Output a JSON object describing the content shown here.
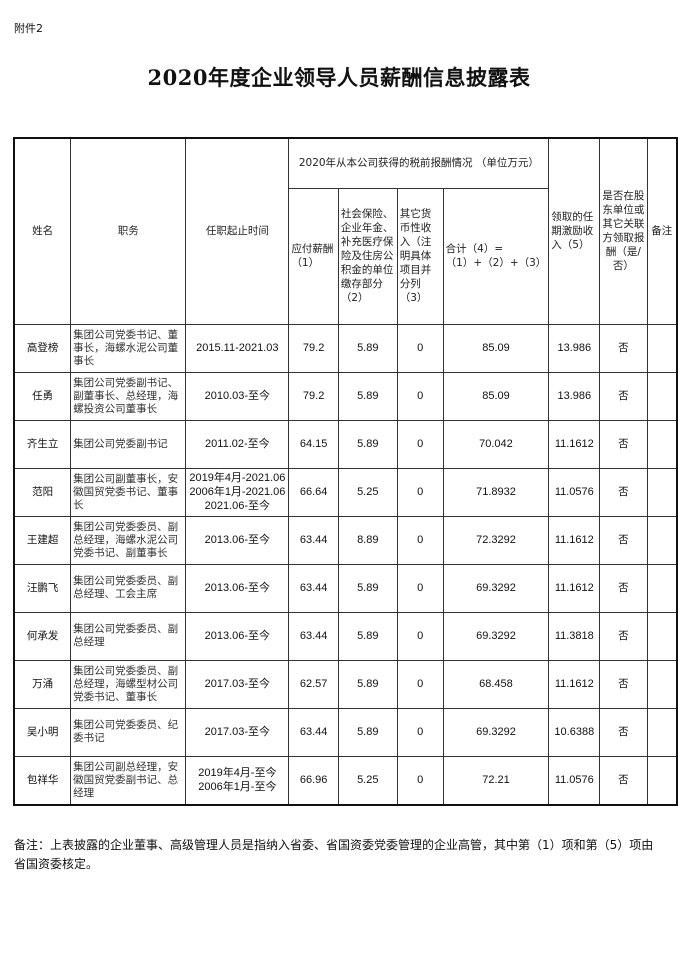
{
  "attachment_label": "附件2",
  "title": "2020年度企业领导人员薪酬信息披露表",
  "headers": {
    "name": "姓名",
    "duty": "职务",
    "term": "任职起止时间",
    "group": "2020年从本公司获得的税前报酬情况 （单位万元）",
    "salary": "应付薪酬（1）",
    "insurance": "社会保险、企业年金、补充医疗保险及住房公积金的单位缴存部分（2）",
    "other": "其它货币性收入（注明具体项目并分列（3）",
    "total": "合计（4）=（1）+（2）+（3）",
    "incentive": "领取的任期激励收入（5）",
    "shareholder": "是否在股东单位或其它关联方领取报酬（是/否）",
    "remark": "备注"
  },
  "rows": [
    {
      "name": "高登榜",
      "duty": "集团公司党委书记、董事长，海螺水泥公司董事长",
      "term": "2015.11-2021.03",
      "salary": "79.2",
      "insurance": "5.89",
      "other": "0",
      "total": "85.09",
      "incentive": "13.986",
      "shareholder": "否",
      "remark": ""
    },
    {
      "name": "任勇",
      "duty": "集团公司党委副书记、副董事长、总经理，海螺投资公司董事长",
      "term": "2010.03-至今",
      "salary": "79.2",
      "insurance": "5.89",
      "other": "0",
      "total": "85.09",
      "incentive": "13.986",
      "shareholder": "否",
      "remark": ""
    },
    {
      "name": "齐生立",
      "duty": "集团公司党委副书记",
      "term": "2011.02-至今",
      "salary": "64.15",
      "insurance": "5.89",
      "other": "0",
      "total": "70.042",
      "incentive": "11.1612",
      "shareholder": "否",
      "remark": ""
    },
    {
      "name": "范阳",
      "duty": "集团公司副董事长，安徽国贸党委书记、董事长",
      "term": "2019年4月-2021.06\n2006年1月-2021.06\n2021.06-至今",
      "salary": "66.64",
      "insurance": "5.25",
      "other": "0",
      "total": "71.8932",
      "incentive": "11.0576",
      "shareholder": "否",
      "remark": ""
    },
    {
      "name": "王建超",
      "duty": "集团公司党委委员、副总经理，海螺水泥公司党委书记、副董事长",
      "term": "2013.06-至今",
      "salary": "63.44",
      "insurance": "8.89",
      "other": "0",
      "total": "72.3292",
      "incentive": "11.1612",
      "shareholder": "否",
      "remark": ""
    },
    {
      "name": "汪鹏飞",
      "duty": "集团公司党委委员、副总经理、工会主席",
      "term": "2013.06-至今",
      "salary": "63.44",
      "insurance": "5.89",
      "other": "0",
      "total": "69.3292",
      "incentive": "11.1612",
      "shareholder": "否",
      "remark": ""
    },
    {
      "name": "何承发",
      "duty": "集团公司党委委员、副总经理",
      "term": "2013.06-至今",
      "salary": "63.44",
      "insurance": "5.89",
      "other": "0",
      "total": "69.3292",
      "incentive": "11.3818",
      "shareholder": "否",
      "remark": ""
    },
    {
      "name": "万涌",
      "duty": "集团公司党委委员、副总经理，海螺型材公司党委书记、董事长",
      "term": "2017.03-至今",
      "salary": "62.57",
      "insurance": "5.89",
      "other": "0",
      "total": "68.458",
      "incentive": "11.1612",
      "shareholder": "否",
      "remark": ""
    },
    {
      "name": "吴小明",
      "duty": "集团公司党委委员、纪委书记",
      "term": "2017.03-至今",
      "salary": "63.44",
      "insurance": "5.89",
      "other": "0",
      "total": "69.3292",
      "incentive": "10.6388",
      "shareholder": "否",
      "remark": ""
    },
    {
      "name": "包祥华",
      "duty": "集团公司副总经理，安徽国贸党委副书记、总经理",
      "term": "2019年4月-至今\n2006年1月-至今",
      "salary": "66.96",
      "insurance": "5.25",
      "other": "0",
      "total": "72.21",
      "incentive": "11.0576",
      "shareholder": "否",
      "remark": ""
    }
  ],
  "note": "备注：上表披露的企业董事、高级管理人员是指纳入省委、省国资委党委管理的企业高管，其中第（1）项和第（5）项由省国资委核定。"
}
